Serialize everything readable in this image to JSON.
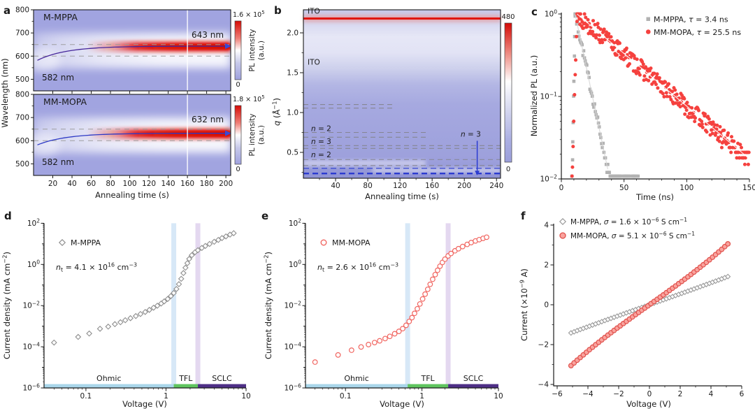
{
  "figure": {
    "background": "#ffffff",
    "text_color": "#1a1a1a",
    "heat_bg": "#a1a4e0",
    "heat_red": "#e01510",
    "blue_accent": "#2b3bd0"
  },
  "chart_data": {
    "a": {
      "type": "heatmap",
      "letter": "a",
      "ylabel": "Wavelength (nm)",
      "xlabel": "Annealing time (s)",
      "x_ticks": [
        20,
        40,
        60,
        80,
        100,
        120,
        140,
        160,
        180,
        200
      ],
      "y_ticks": [
        800,
        700,
        600,
        500
      ],
      "wl_range": [
        450,
        800
      ],
      "t_range": [
        0,
        205
      ],
      "dashed_wavelengths": [
        650,
        600
      ],
      "marker_time_s": 160,
      "colorbar_label_line1": "PL intensity",
      "colorbar_label_line2": "(a.u.)",
      "colorbar_min": "0",
      "panels": [
        {
          "name": "M-MPPA",
          "start_label": "582 nm",
          "end_label": "643 nm",
          "peak_start_nm": 582,
          "peak_end_nm": 643,
          "rise_tau_s": 30,
          "trace_color": "#46269a",
          "cmax_segs": [
            {
              "t": "1.6 × 10"
            },
            {
              "t": "5",
              "s": "sup"
            }
          ]
        },
        {
          "name": "MM-MOPA",
          "start_label": "582 nm",
          "end_label": "632 nm",
          "peak_start_nm": 582,
          "peak_end_nm": 632,
          "rise_tau_s": 30,
          "trace_color": "#2d39c5",
          "cmax_segs": [
            {
              "t": "1.8 × 10"
            },
            {
              "t": "5",
              "s": "sup"
            }
          ]
        }
      ]
    },
    "b": {
      "type": "heatmap",
      "letter": "b",
      "ylabel_segs": [
        {
          "t": "q",
          "i": 1
        },
        {
          "t": " (Å"
        },
        {
          "t": "−1",
          "s": "sup"
        },
        {
          "t": ")"
        }
      ],
      "xlabel": "Annealing time (s)",
      "x_ticks": [
        40,
        80,
        120,
        160,
        200,
        240
      ],
      "y_ticks": [
        "2.0",
        "1.5",
        "1.0",
        "0.5"
      ],
      "y_tick_values": [
        2.0,
        1.5,
        1.0,
        0.5
      ],
      "q_range": [
        0.175,
        2.29
      ],
      "t_range": [
        0,
        245
      ],
      "colorbar_max": "480",
      "colorbar_min": "0",
      "ito_labels": [
        {
          "text": "ITO",
          "q": 2.27
        },
        {
          "text": "ITO",
          "q": 1.63
        }
      ],
      "red_band_q": 2.18,
      "white_line_q": 1.53,
      "white_streaks_q": [
        1.82,
        1.62
      ],
      "lower_red_q": 0.365,
      "pink_line_q": 0.275,
      "gray_dash_rows": [
        {
          "q": 1.1,
          "frac": 0.45
        },
        {
          "q": 1.055,
          "frac": 0.45
        },
        {
          "q": 0.75,
          "frac": 0.63
        },
        {
          "q": 0.69,
          "frac": 0.63
        },
        {
          "q": 0.585,
          "frac": 1
        },
        {
          "q": 0.55,
          "frac": 1
        },
        {
          "q": 0.41,
          "frac": 1
        },
        {
          "q": 0.335,
          "frac": 1
        }
      ],
      "blue_dash_rows": [
        {
          "q": 0.3,
          "w": 1.2
        },
        {
          "q": 0.235,
          "w": 2.3
        }
      ],
      "phase_labels": [
        {
          "segs": [
            {
              "t": "n",
              "i": 1
            },
            {
              "t": " = 2"
            }
          ],
          "q": 0.8
        },
        {
          "segs": [
            {
              "t": "n",
              "i": 1
            },
            {
              "t": " = 3"
            }
          ],
          "q": 0.635
        },
        {
          "segs": [
            {
              "t": "n",
              "i": 1
            },
            {
              "t": " = 2"
            }
          ],
          "q": 0.47
        }
      ],
      "right_label": {
        "segs": [
          {
            "t": "n",
            "i": 1
          },
          {
            "t": " = 3"
          }
        ],
        "q": 0.73,
        "t": 208
      },
      "arrow": {
        "t": 216,
        "q_from": 0.645,
        "q_to": 0.27
      }
    },
    "c": {
      "type": "scatter",
      "letter": "c",
      "ylabel": "Normalized PL (a.u.)",
      "xlabel": "Time (ns)",
      "x_ticks": [
        0,
        50,
        100,
        150
      ],
      "y_tick_exponents": [
        0,
        -1,
        -2
      ],
      "x_range": [
        0,
        150
      ],
      "y_log_range": [
        -2,
        0
      ],
      "series": [
        {
          "legend_segs": [
            {
              "t": "M-MPPA, "
            },
            {
              "t": "τ",
              "i": 1
            },
            {
              "t": " = 3.4 ns"
            }
          ],
          "tau_ns": 3.4,
          "marker": "square",
          "color": "#b2b2b2",
          "line_color": "#d6d6d6",
          "rise_start": 8.5,
          "peak_t": 11,
          "render_tau": 6.0,
          "dt": 0.62,
          "t_end": 62,
          "noise": 0.28,
          "floor": 0.0105,
          "sparse_after": 42,
          "seed": 7
        },
        {
          "legend_segs": [
            {
              "t": "MM-MOPA, "
            },
            {
              "t": "τ",
              "i": 1
            },
            {
              "t": " = 25.5 ns"
            }
          ],
          "tau_ns": 25.5,
          "marker": "circle",
          "color": "#f5413e",
          "line_color": "#ffffff",
          "rise_start": 8.5,
          "peak_t": 12.5,
          "render_tau": 34,
          "dt": 0.46,
          "t_end": 150,
          "noise": 0.5,
          "floor": 0.013,
          "sparse_after": 999,
          "seed": 13
        }
      ]
    },
    "d": {
      "type": "scatter",
      "letter": "d",
      "legend_name": "M-MPPA",
      "marker": "diamond",
      "marker_color": "#8f8f8f",
      "nt_segs": [
        {
          "t": "n",
          "i": 1
        },
        {
          "t": "t",
          "s": "sub"
        },
        {
          "t": " = 4.1 × 10"
        },
        {
          "t": "16",
          "s": "sup"
        },
        {
          "t": " cm"
        },
        {
          "t": "−3",
          "s": "sup"
        }
      ],
      "ylabel_segs": [
        {
          "t": "Current density (mA cm"
        },
        {
          "t": "−2",
          "s": "sup"
        },
        {
          "t": ")"
        }
      ],
      "xlabel": "Voltage (V)",
      "x_ticks": [
        "0.1",
        "1",
        "10"
      ],
      "x_tick_values": [
        0.1,
        1,
        10
      ],
      "y_tick_exponents": [
        2,
        0,
        -2,
        -4,
        -6
      ],
      "x_range": [
        0.03,
        10
      ],
      "region_boundaries_v": [
        1.25,
        2.5
      ],
      "region_labels": [
        "Ohmic",
        "TFL",
        "SCLC"
      ],
      "region_colors": [
        "#a9d6ea",
        "#5fc45f",
        "#4e2f86"
      ],
      "vline_colors": [
        "#bcd8f2",
        "#d5c3e8"
      ],
      "points": [
        [
          0.04,
          0.00016
        ],
        [
          0.08,
          0.0003
        ],
        [
          0.11,
          0.00044
        ],
        [
          0.15,
          0.00075
        ],
        [
          0.19,
          0.00095
        ],
        [
          0.23,
          0.00125
        ],
        [
          0.27,
          0.00155
        ],
        [
          0.31,
          0.00195
        ],
        [
          0.36,
          0.00245
        ],
        [
          0.42,
          0.0031
        ],
        [
          0.48,
          0.0039
        ],
        [
          0.55,
          0.0049
        ],
        [
          0.62,
          0.0062
        ],
        [
          0.7,
          0.0079
        ],
        [
          0.78,
          0.0099
        ],
        [
          0.87,
          0.0126
        ],
        [
          0.95,
          0.016
        ],
        [
          1.05,
          0.021
        ],
        [
          1.15,
          0.029
        ],
        [
          1.25,
          0.041
        ],
        [
          1.35,
          0.064
        ],
        [
          1.45,
          0.11
        ],
        [
          1.55,
          0.2
        ],
        [
          1.65,
          0.38
        ],
        [
          1.75,
          0.69
        ],
        [
          1.85,
          1.15
        ],
        [
          1.95,
          1.85
        ],
        [
          2.1,
          2.8
        ],
        [
          2.3,
          3.9
        ],
        [
          2.5,
          4.9
        ],
        [
          2.8,
          6.3
        ],
        [
          3.1,
          7.9
        ],
        [
          3.5,
          9.9
        ],
        [
          4.0,
          12.6
        ],
        [
          4.5,
          15.5
        ],
        [
          5.0,
          19.0
        ],
        [
          5.6,
          23.0
        ],
        [
          6.3,
          28.0
        ],
        [
          7.0,
          33.0
        ]
      ]
    },
    "e": {
      "type": "scatter",
      "letter": "e",
      "legend_name": "MM-MOPA",
      "marker": "circle",
      "marker_color": "#f16661",
      "nt_segs": [
        {
          "t": "n",
          "i": 1
        },
        {
          "t": "t",
          "s": "sub"
        },
        {
          "t": " = 2.6 × 10"
        },
        {
          "t": "16",
          "s": "sup"
        },
        {
          "t": " cm"
        },
        {
          "t": "−3",
          "s": "sup"
        }
      ],
      "ylabel_segs": [
        {
          "t": "Current density (mA cm"
        },
        {
          "t": "−2",
          "s": "sup"
        },
        {
          "t": ")"
        }
      ],
      "xlabel": "Voltage (V)",
      "x_ticks": [
        "0.1",
        "1",
        "10"
      ],
      "x_tick_values": [
        0.1,
        1,
        10
      ],
      "y_tick_exponents": [
        2,
        0,
        -2,
        -4,
        -6
      ],
      "x_range": [
        0.03,
        10
      ],
      "region_boundaries_v": [
        0.65,
        2.2
      ],
      "region_labels": [
        "Ohmic",
        "TFL",
        "SCLC"
      ],
      "region_colors": [
        "#a9d6ea",
        "#5fc45f",
        "#4e2f86"
      ],
      "vline_colors": [
        "#bcd8f2",
        "#d5c3e8"
      ],
      "points": [
        [
          0.04,
          1.8e-05
        ],
        [
          0.08,
          4e-05
        ],
        [
          0.12,
          6.8e-05
        ],
        [
          0.16,
          9.8e-05
        ],
        [
          0.2,
          0.000128
        ],
        [
          0.24,
          0.00016
        ],
        [
          0.28,
          0.000195
        ],
        [
          0.33,
          0.00025
        ],
        [
          0.38,
          0.00032
        ],
        [
          0.44,
          0.00043
        ],
        [
          0.5,
          0.00056
        ],
        [
          0.56,
          0.00076
        ],
        [
          0.62,
          0.0011
        ],
        [
          0.68,
          0.0017
        ],
        [
          0.74,
          0.0026
        ],
        [
          0.8,
          0.0042
        ],
        [
          0.87,
          0.007
        ],
        [
          0.94,
          0.012
        ],
        [
          1.02,
          0.021
        ],
        [
          1.1,
          0.036
        ],
        [
          1.19,
          0.062
        ],
        [
          1.28,
          0.108
        ],
        [
          1.38,
          0.19
        ],
        [
          1.49,
          0.32
        ],
        [
          1.6,
          0.52
        ],
        [
          1.72,
          0.82
        ],
        [
          1.85,
          1.25
        ],
        [
          2.0,
          1.8
        ],
        [
          2.2,
          2.6
        ],
        [
          2.4,
          3.4
        ],
        [
          2.7,
          4.6
        ],
        [
          3.0,
          5.8
        ],
        [
          3.4,
          7.4
        ],
        [
          3.9,
          9.4
        ],
        [
          4.4,
          11.5
        ],
        [
          5.0,
          13.8
        ],
        [
          5.6,
          16.0
        ],
        [
          6.3,
          18.5
        ],
        [
          7.0,
          21.0
        ]
      ]
    },
    "f": {
      "type": "scatter",
      "letter": "f",
      "ylabel_segs": [
        {
          "t": "Current (×10"
        },
        {
          "t": "−9",
          "s": "sup"
        },
        {
          "t": " A)"
        }
      ],
      "xlabel": "Voltage (V)",
      "x_ticks": [
        -6,
        -4,
        -2,
        0,
        2,
        4,
        6
      ],
      "y_ticks": [
        4,
        2,
        0,
        -2,
        -4
      ],
      "x_range": [
        -6,
        6
      ],
      "y_range": [
        -4,
        4
      ],
      "series": [
        {
          "legend_segs": [
            {
              "t": "M-MPPA, "
            },
            {
              "t": "σ",
              "i": 1
            },
            {
              "t": " = 1.6 × 10"
            },
            {
              "t": "−6",
              "s": "sup"
            },
            {
              "t": " S cm"
            },
            {
              "t": "−1",
              "s": "sup"
            }
          ],
          "marker": "diamond",
          "fill": "#ffffff",
          "stroke": "#9a9a9a",
          "vmin": -5.1,
          "vmax": 5.1,
          "step": 0.2,
          "slope": 0.272,
          "cubic": 0.0002
        },
        {
          "legend_segs": [
            {
              "t": "MM-MOPA, "
            },
            {
              "t": "σ",
              "i": 1
            },
            {
              "t": " = 5.1 × 10"
            },
            {
              "t": "−6",
              "s": "sup"
            },
            {
              "t": " S cm"
            },
            {
              "t": "−1",
              "s": "sup"
            }
          ],
          "marker": "circle",
          "fill": "#f9a39e",
          "stroke": "#e0504b",
          "vmin": -5.1,
          "vmax": 5.1,
          "step": 0.2,
          "slope": 0.55,
          "cubic": 0.0019
        }
      ]
    }
  }
}
